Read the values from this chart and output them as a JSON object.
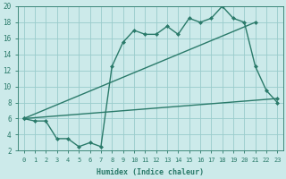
{
  "xlabel": "Humidex (Indice chaleur)",
  "bg_color": "#cceaea",
  "grid_color": "#99cccc",
  "line_color": "#2a7a6a",
  "xlim": [
    -0.5,
    23.5
  ],
  "ylim": [
    2,
    20
  ],
  "xticks": [
    0,
    1,
    2,
    3,
    4,
    5,
    6,
    7,
    8,
    9,
    10,
    11,
    12,
    13,
    14,
    15,
    16,
    17,
    18,
    19,
    20,
    21,
    22,
    23
  ],
  "yticks": [
    2,
    4,
    6,
    8,
    10,
    12,
    14,
    16,
    18,
    20
  ],
  "line1_x": [
    0,
    1,
    2,
    3,
    4,
    5,
    6,
    7,
    8,
    9,
    10,
    11,
    12,
    13,
    14,
    15,
    16,
    17,
    18,
    19,
    20,
    21,
    22,
    23
  ],
  "line1_y": [
    6.0,
    5.7,
    5.7,
    3.5,
    3.5,
    2.5,
    3.0,
    2.5,
    12.5,
    15.5,
    17.0,
    16.5,
    16.5,
    17.5,
    16.5,
    18.5,
    18.0,
    18.5,
    20.0,
    18.5,
    18.0,
    12.5,
    9.5,
    8.0
  ],
  "line2_x": [
    0,
    21
  ],
  "line2_y": [
    6,
    18
  ],
  "line3_x": [
    0,
    23
  ],
  "line3_y": [
    6,
    8.5
  ],
  "marker": "D",
  "marker_size": 2.0,
  "line_width": 1.0
}
